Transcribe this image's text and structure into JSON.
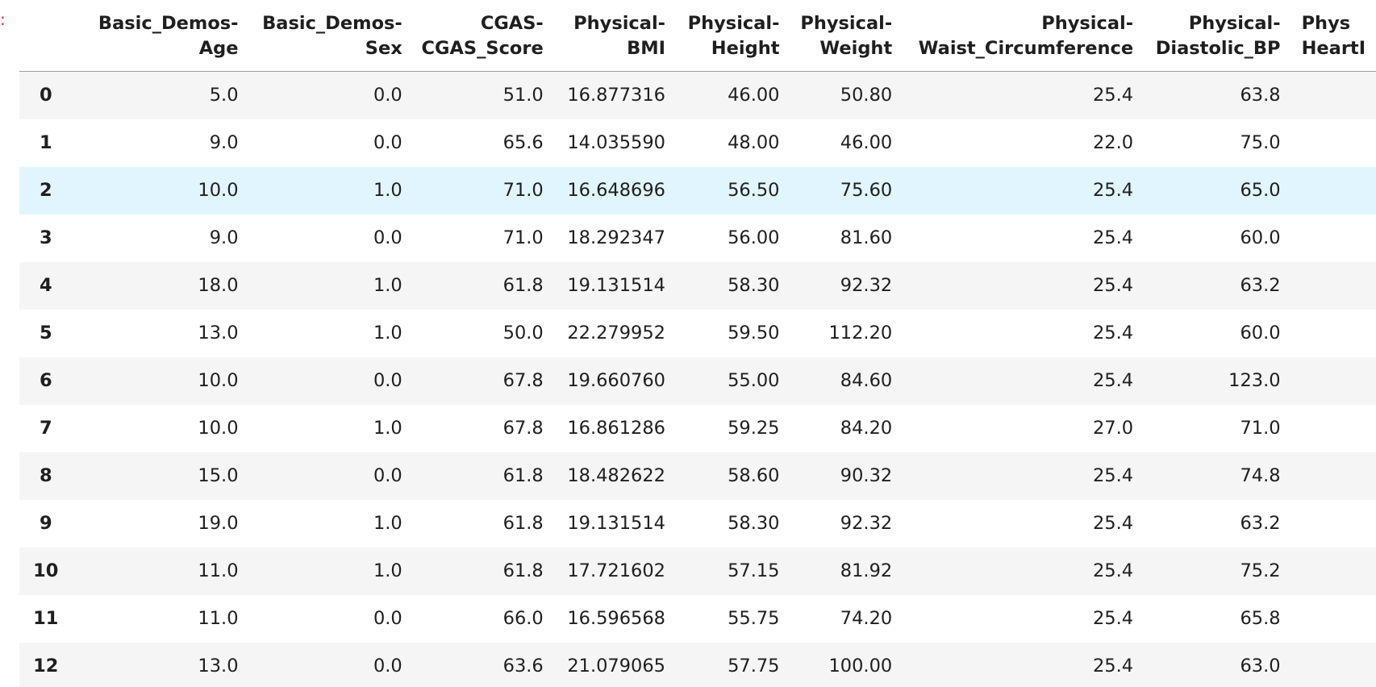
{
  "output_marker": ":",
  "columns": [
    {
      "line1": "",
      "line2": ""
    },
    {
      "line1": "Basic_Demos-",
      "line2": "Age"
    },
    {
      "line1": "Basic_Demos-",
      "line2": "Sex"
    },
    {
      "line1": "CGAS-",
      "line2": "CGAS_Score"
    },
    {
      "line1": "Physical-",
      "line2": "BMI"
    },
    {
      "line1": "Physical-",
      "line2": "Height"
    },
    {
      "line1": "Physical-",
      "line2": "Weight"
    },
    {
      "line1": "Physical-",
      "line2": "Waist_Circumference"
    },
    {
      "line1": "Physical-",
      "line2": "Diastolic_BP"
    },
    {
      "line1": "Phys",
      "line2": "HeartI"
    }
  ],
  "rows": [
    {
      "index": "0",
      "cells": [
        "5.0",
        "0.0",
        "51.0",
        "16.877316",
        "46.00",
        "50.80",
        "25.4",
        "63.8",
        ""
      ]
    },
    {
      "index": "1",
      "cells": [
        "9.0",
        "0.0",
        "65.6",
        "14.035590",
        "48.00",
        "46.00",
        "22.0",
        "75.0",
        ""
      ]
    },
    {
      "index": "2",
      "cells": [
        "10.0",
        "1.0",
        "71.0",
        "16.648696",
        "56.50",
        "75.60",
        "25.4",
        "65.0",
        ""
      ]
    },
    {
      "index": "3",
      "cells": [
        "9.0",
        "0.0",
        "71.0",
        "18.292347",
        "56.00",
        "81.60",
        "25.4",
        "60.0",
        ""
      ]
    },
    {
      "index": "4",
      "cells": [
        "18.0",
        "1.0",
        "61.8",
        "19.131514",
        "58.30",
        "92.32",
        "25.4",
        "63.2",
        ""
      ]
    },
    {
      "index": "5",
      "cells": [
        "13.0",
        "1.0",
        "50.0",
        "22.279952",
        "59.50",
        "112.20",
        "25.4",
        "60.0",
        ""
      ]
    },
    {
      "index": "6",
      "cells": [
        "10.0",
        "0.0",
        "67.8",
        "19.660760",
        "55.00",
        "84.60",
        "25.4",
        "123.0",
        ""
      ]
    },
    {
      "index": "7",
      "cells": [
        "10.0",
        "1.0",
        "67.8",
        "16.861286",
        "59.25",
        "84.20",
        "27.0",
        "71.0",
        ""
      ]
    },
    {
      "index": "8",
      "cells": [
        "15.0",
        "0.0",
        "61.8",
        "18.482622",
        "58.60",
        "90.32",
        "25.4",
        "74.8",
        ""
      ]
    },
    {
      "index": "9",
      "cells": [
        "19.0",
        "1.0",
        "61.8",
        "19.131514",
        "58.30",
        "92.32",
        "25.4",
        "63.2",
        ""
      ]
    },
    {
      "index": "10",
      "cells": [
        "11.0",
        "1.0",
        "61.8",
        "17.721602",
        "57.15",
        "81.92",
        "25.4",
        "75.2",
        ""
      ]
    },
    {
      "index": "11",
      "cells": [
        "11.0",
        "0.0",
        "66.0",
        "16.596568",
        "55.75",
        "74.20",
        "25.4",
        "65.8",
        ""
      ]
    },
    {
      "index": "12",
      "cells": [
        "13.0",
        "0.0",
        "63.6",
        "21.079065",
        "57.75",
        "100.00",
        "25.4",
        "63.0",
        ""
      ]
    }
  ],
  "hovered_row": "2",
  "colors": {
    "header_rule": "#9e9e9e",
    "striped_row": "#f5f5f5",
    "hover_row": "#e1f5fe",
    "output_marker": "#d32f2f"
  }
}
